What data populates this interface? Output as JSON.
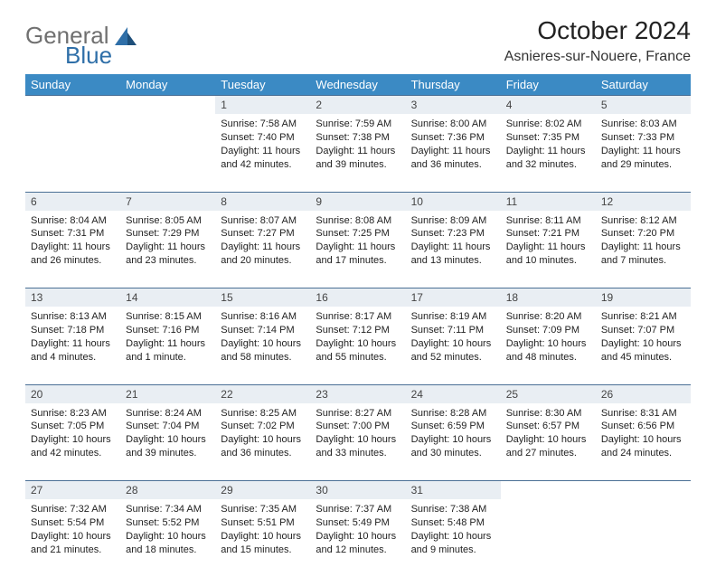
{
  "brand": {
    "part1": "General",
    "part2": "Blue"
  },
  "title": "October 2024",
  "location": "Asnieres-sur-Nouere, France",
  "colors": {
    "header_bg": "#3b8ac4",
    "header_text": "#ffffff",
    "daynum_bg": "#e9eef3",
    "daynum_border": "#4a6f95",
    "logo_gray": "#707070",
    "logo_blue": "#2f6fa8",
    "page_bg": "#ffffff",
    "text": "#222222"
  },
  "weekdays": [
    "Sunday",
    "Monday",
    "Tuesday",
    "Wednesday",
    "Thursday",
    "Friday",
    "Saturday"
  ],
  "weeks": [
    [
      null,
      null,
      {
        "n": "1",
        "sr": "Sunrise: 7:58 AM",
        "ss": "Sunset: 7:40 PM",
        "dl": "Daylight: 11 hours and 42 minutes."
      },
      {
        "n": "2",
        "sr": "Sunrise: 7:59 AM",
        "ss": "Sunset: 7:38 PM",
        "dl": "Daylight: 11 hours and 39 minutes."
      },
      {
        "n": "3",
        "sr": "Sunrise: 8:00 AM",
        "ss": "Sunset: 7:36 PM",
        "dl": "Daylight: 11 hours and 36 minutes."
      },
      {
        "n": "4",
        "sr": "Sunrise: 8:02 AM",
        "ss": "Sunset: 7:35 PM",
        "dl": "Daylight: 11 hours and 32 minutes."
      },
      {
        "n": "5",
        "sr": "Sunrise: 8:03 AM",
        "ss": "Sunset: 7:33 PM",
        "dl": "Daylight: 11 hours and 29 minutes."
      }
    ],
    [
      {
        "n": "6",
        "sr": "Sunrise: 8:04 AM",
        "ss": "Sunset: 7:31 PM",
        "dl": "Daylight: 11 hours and 26 minutes."
      },
      {
        "n": "7",
        "sr": "Sunrise: 8:05 AM",
        "ss": "Sunset: 7:29 PM",
        "dl": "Daylight: 11 hours and 23 minutes."
      },
      {
        "n": "8",
        "sr": "Sunrise: 8:07 AM",
        "ss": "Sunset: 7:27 PM",
        "dl": "Daylight: 11 hours and 20 minutes."
      },
      {
        "n": "9",
        "sr": "Sunrise: 8:08 AM",
        "ss": "Sunset: 7:25 PM",
        "dl": "Daylight: 11 hours and 17 minutes."
      },
      {
        "n": "10",
        "sr": "Sunrise: 8:09 AM",
        "ss": "Sunset: 7:23 PM",
        "dl": "Daylight: 11 hours and 13 minutes."
      },
      {
        "n": "11",
        "sr": "Sunrise: 8:11 AM",
        "ss": "Sunset: 7:21 PM",
        "dl": "Daylight: 11 hours and 10 minutes."
      },
      {
        "n": "12",
        "sr": "Sunrise: 8:12 AM",
        "ss": "Sunset: 7:20 PM",
        "dl": "Daylight: 11 hours and 7 minutes."
      }
    ],
    [
      {
        "n": "13",
        "sr": "Sunrise: 8:13 AM",
        "ss": "Sunset: 7:18 PM",
        "dl": "Daylight: 11 hours and 4 minutes."
      },
      {
        "n": "14",
        "sr": "Sunrise: 8:15 AM",
        "ss": "Sunset: 7:16 PM",
        "dl": "Daylight: 11 hours and 1 minute."
      },
      {
        "n": "15",
        "sr": "Sunrise: 8:16 AM",
        "ss": "Sunset: 7:14 PM",
        "dl": "Daylight: 10 hours and 58 minutes."
      },
      {
        "n": "16",
        "sr": "Sunrise: 8:17 AM",
        "ss": "Sunset: 7:12 PM",
        "dl": "Daylight: 10 hours and 55 minutes."
      },
      {
        "n": "17",
        "sr": "Sunrise: 8:19 AM",
        "ss": "Sunset: 7:11 PM",
        "dl": "Daylight: 10 hours and 52 minutes."
      },
      {
        "n": "18",
        "sr": "Sunrise: 8:20 AM",
        "ss": "Sunset: 7:09 PM",
        "dl": "Daylight: 10 hours and 48 minutes."
      },
      {
        "n": "19",
        "sr": "Sunrise: 8:21 AM",
        "ss": "Sunset: 7:07 PM",
        "dl": "Daylight: 10 hours and 45 minutes."
      }
    ],
    [
      {
        "n": "20",
        "sr": "Sunrise: 8:23 AM",
        "ss": "Sunset: 7:05 PM",
        "dl": "Daylight: 10 hours and 42 minutes."
      },
      {
        "n": "21",
        "sr": "Sunrise: 8:24 AM",
        "ss": "Sunset: 7:04 PM",
        "dl": "Daylight: 10 hours and 39 minutes."
      },
      {
        "n": "22",
        "sr": "Sunrise: 8:25 AM",
        "ss": "Sunset: 7:02 PM",
        "dl": "Daylight: 10 hours and 36 minutes."
      },
      {
        "n": "23",
        "sr": "Sunrise: 8:27 AM",
        "ss": "Sunset: 7:00 PM",
        "dl": "Daylight: 10 hours and 33 minutes."
      },
      {
        "n": "24",
        "sr": "Sunrise: 8:28 AM",
        "ss": "Sunset: 6:59 PM",
        "dl": "Daylight: 10 hours and 30 minutes."
      },
      {
        "n": "25",
        "sr": "Sunrise: 8:30 AM",
        "ss": "Sunset: 6:57 PM",
        "dl": "Daylight: 10 hours and 27 minutes."
      },
      {
        "n": "26",
        "sr": "Sunrise: 8:31 AM",
        "ss": "Sunset: 6:56 PM",
        "dl": "Daylight: 10 hours and 24 minutes."
      }
    ],
    [
      {
        "n": "27",
        "sr": "Sunrise: 7:32 AM",
        "ss": "Sunset: 5:54 PM",
        "dl": "Daylight: 10 hours and 21 minutes."
      },
      {
        "n": "28",
        "sr": "Sunrise: 7:34 AM",
        "ss": "Sunset: 5:52 PM",
        "dl": "Daylight: 10 hours and 18 minutes."
      },
      {
        "n": "29",
        "sr": "Sunrise: 7:35 AM",
        "ss": "Sunset: 5:51 PM",
        "dl": "Daylight: 10 hours and 15 minutes."
      },
      {
        "n": "30",
        "sr": "Sunrise: 7:37 AM",
        "ss": "Sunset: 5:49 PM",
        "dl": "Daylight: 10 hours and 12 minutes."
      },
      {
        "n": "31",
        "sr": "Sunrise: 7:38 AM",
        "ss": "Sunset: 5:48 PM",
        "dl": "Daylight: 10 hours and 9 minutes."
      },
      null,
      null
    ]
  ]
}
